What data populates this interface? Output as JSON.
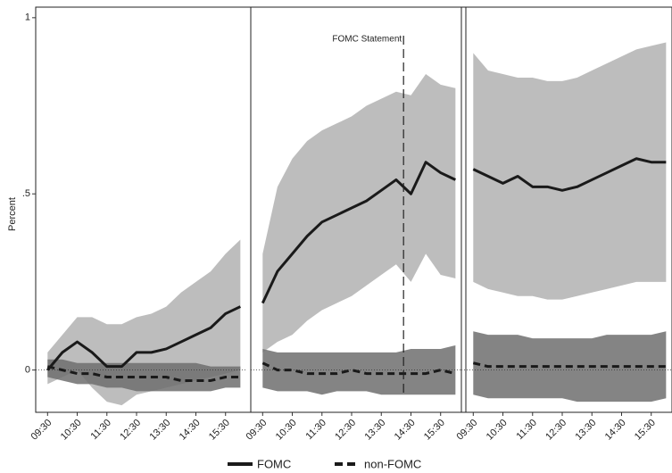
{
  "chart_data": {
    "type": "line",
    "ylabel": "Percent",
    "ylim": [
      -0.12,
      1.03
    ],
    "yticks": [
      0,
      {
        "value": 0.5,
        "label": ".5"
      },
      1
    ],
    "xlim": [
      9.1,
      16.2
    ],
    "xticks": [
      {
        "value": 9.5,
        "label": "09:30"
      },
      {
        "value": 10.5,
        "label": "10:30"
      },
      {
        "value": 11.5,
        "label": "11:30"
      },
      {
        "value": 12.5,
        "label": "12:30"
      },
      {
        "value": 13.5,
        "label": "13:30"
      },
      {
        "value": 14.5,
        "label": "14:30"
      },
      {
        "value": 15.5,
        "label": "15:30"
      }
    ],
    "x": [
      9.5,
      10,
      10.5,
      11,
      11.5,
      12,
      12.5,
      13,
      13.5,
      14,
      14.5,
      15,
      15.5,
      16
    ],
    "annotation": {
      "text": "FOMC Statement",
      "panel": 1,
      "x": 14.25
    },
    "series": [
      {
        "name": "FOMC",
        "color": "#1a1a1a",
        "band_color": "#bdbdbd",
        "dash": false,
        "panels": [
          {
            "values": [
              0.0,
              0.05,
              0.08,
              0.05,
              0.01,
              0.01,
              0.05,
              0.05,
              0.06,
              0.08,
              0.1,
              0.12,
              0.16,
              0.18
            ],
            "upper": [
              0.05,
              0.1,
              0.15,
              0.15,
              0.13,
              0.13,
              0.15,
              0.16,
              0.18,
              0.22,
              0.25,
              0.28,
              0.33,
              0.37
            ],
            "lower": [
              -0.04,
              -0.02,
              0.0,
              -0.05,
              -0.09,
              -0.1,
              -0.07,
              -0.06,
              -0.05,
              -0.04,
              -0.03,
              -0.02,
              -0.01,
              0.0
            ]
          },
          {
            "values": [
              0.19,
              0.28,
              0.33,
              0.38,
              0.42,
              0.44,
              0.46,
              0.48,
              0.51,
              0.54,
              0.5,
              0.59,
              0.56,
              0.54
            ],
            "upper": [
              0.33,
              0.52,
              0.6,
              0.65,
              0.68,
              0.7,
              0.72,
              0.75,
              0.77,
              0.79,
              0.78,
              0.84,
              0.81,
              0.8
            ],
            "lower": [
              0.05,
              0.08,
              0.1,
              0.14,
              0.17,
              0.19,
              0.21,
              0.24,
              0.27,
              0.3,
              0.25,
              0.33,
              0.27,
              0.26
            ]
          },
          {
            "values": [
              0.57,
              0.55,
              0.53,
              0.55,
              0.52,
              0.52,
              0.51,
              0.52,
              0.54,
              0.56,
              0.58,
              0.6,
              0.59,
              0.59
            ],
            "upper": [
              0.9,
              0.85,
              0.84,
              0.83,
              0.83,
              0.82,
              0.82,
              0.83,
              0.85,
              0.87,
              0.89,
              0.91,
              0.92,
              0.93
            ],
            "lower": [
              0.25,
              0.23,
              0.22,
              0.21,
              0.21,
              0.2,
              0.2,
              0.21,
              0.22,
              0.23,
              0.24,
              0.25,
              0.25,
              0.25
            ]
          }
        ]
      },
      {
        "name": "non-FOMC",
        "color": "#1a1a1a",
        "band_color": "#6e6e6e",
        "dash": true,
        "panels": [
          {
            "values": [
              0.01,
              0.0,
              -0.01,
              -0.01,
              -0.02,
              -0.02,
              -0.02,
              -0.02,
              -0.02,
              -0.03,
              -0.03,
              -0.03,
              -0.02,
              -0.02
            ],
            "upper": [
              0.03,
              0.03,
              0.02,
              0.02,
              0.02,
              0.02,
              0.02,
              0.02,
              0.02,
              0.02,
              0.02,
              0.01,
              0.01,
              0.01
            ],
            "lower": [
              -0.02,
              -0.03,
              -0.04,
              -0.04,
              -0.05,
              -0.05,
              -0.06,
              -0.06,
              -0.06,
              -0.06,
              -0.06,
              -0.06,
              -0.05,
              -0.05
            ]
          },
          {
            "values": [
              0.02,
              0.0,
              0.0,
              -0.01,
              -0.01,
              -0.01,
              0.0,
              -0.01,
              -0.01,
              -0.01,
              -0.01,
              -0.01,
              0.0,
              -0.01
            ],
            "upper": [
              0.06,
              0.05,
              0.05,
              0.05,
              0.05,
              0.05,
              0.05,
              0.05,
              0.05,
              0.05,
              0.06,
              0.06,
              0.06,
              0.07
            ],
            "lower": [
              -0.05,
              -0.06,
              -0.06,
              -0.06,
              -0.07,
              -0.06,
              -0.06,
              -0.06,
              -0.07,
              -0.07,
              -0.07,
              -0.07,
              -0.07,
              -0.07
            ]
          },
          {
            "values": [
              0.02,
              0.01,
              0.01,
              0.01,
              0.01,
              0.01,
              0.01,
              0.01,
              0.01,
              0.01,
              0.01,
              0.01,
              0.01,
              0.01
            ],
            "upper": [
              0.11,
              0.1,
              0.1,
              0.1,
              0.09,
              0.09,
              0.09,
              0.09,
              0.09,
              0.1,
              0.1,
              0.1,
              0.1,
              0.11
            ],
            "lower": [
              -0.07,
              -0.08,
              -0.08,
              -0.08,
              -0.08,
              -0.08,
              -0.08,
              -0.09,
              -0.09,
              -0.09,
              -0.09,
              -0.09,
              -0.09,
              -0.08
            ]
          }
        ]
      }
    ]
  }
}
